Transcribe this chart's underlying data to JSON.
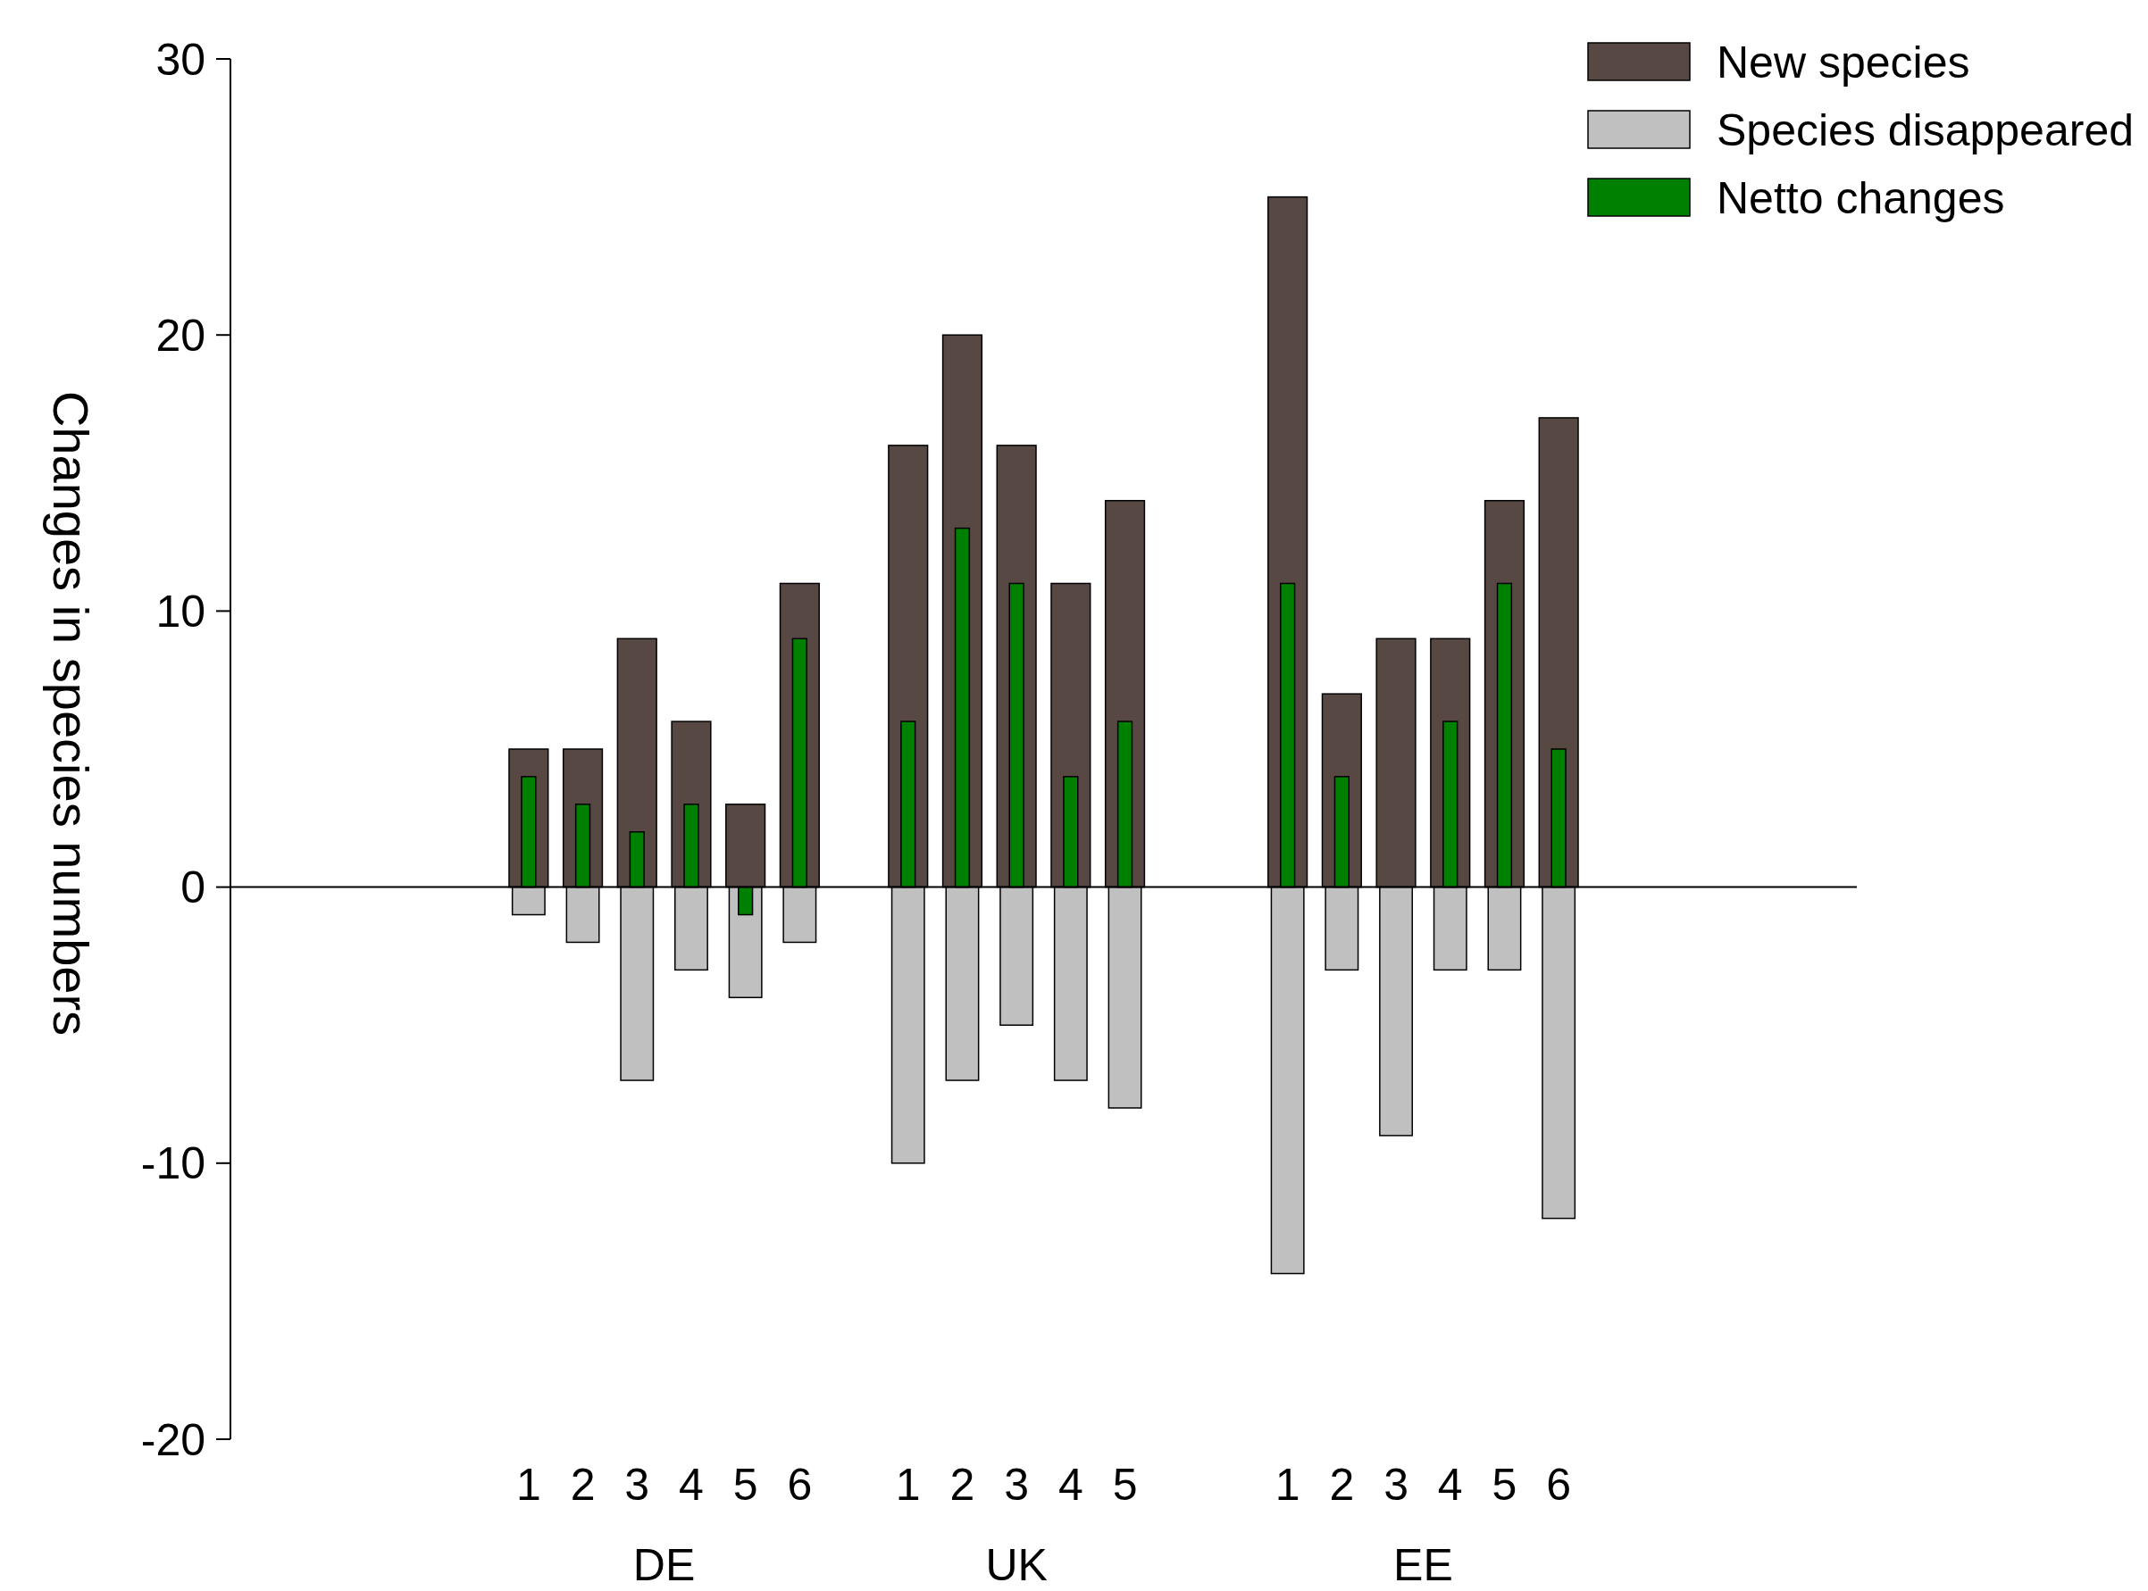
{
  "chart_data": {
    "type": "bar",
    "ylabel": "Changes in species numbers",
    "categories": [
      null,
      null,
      null,
      null,
      null,
      "1",
      "2",
      "3",
      "4",
      "5",
      "6",
      null,
      "1",
      "2",
      "3",
      "4",
      "5",
      null,
      null,
      "1",
      "2",
      "3",
      "4",
      "5",
      "6",
      null,
      null,
      null,
      null,
      null
    ],
    "series": [
      {
        "name": "New species",
        "color": "#574843",
        "values": [
          null,
          null,
          null,
          null,
          null,
          5,
          5,
          9,
          6,
          3,
          11,
          null,
          16,
          20,
          16,
          11,
          14,
          null,
          null,
          25,
          7,
          9,
          9,
          14,
          17,
          null,
          null,
          null,
          null,
          null
        ]
      },
      {
        "name": "Species disappeared",
        "color": "#c0c0c0",
        "values": [
          null,
          null,
          null,
          null,
          null,
          -1,
          -2,
          -7,
          -3,
          -4,
          -2,
          null,
          -10,
          -7,
          -5,
          -7,
          -8,
          null,
          null,
          -14,
          -3,
          -9,
          -3,
          -3,
          -12,
          null,
          null,
          null,
          null,
          null
        ]
      },
      {
        "name": "Netto changes",
        "color": "#008000",
        "values": [
          null,
          null,
          null,
          null,
          null,
          4,
          3,
          2,
          3,
          -1,
          9,
          null,
          6,
          13,
          11,
          4,
          6,
          null,
          null,
          11,
          4,
          0,
          6,
          11,
          5,
          null,
          null,
          null,
          null,
          null
        ]
      }
    ],
    "annotations": [
      "DE",
      "UK",
      "EE"
    ],
    "ylim": [
      -20,
      30
    ],
    "yticks": [
      -20,
      -10,
      0,
      10,
      20,
      30
    ],
    "legend": "top right"
  }
}
